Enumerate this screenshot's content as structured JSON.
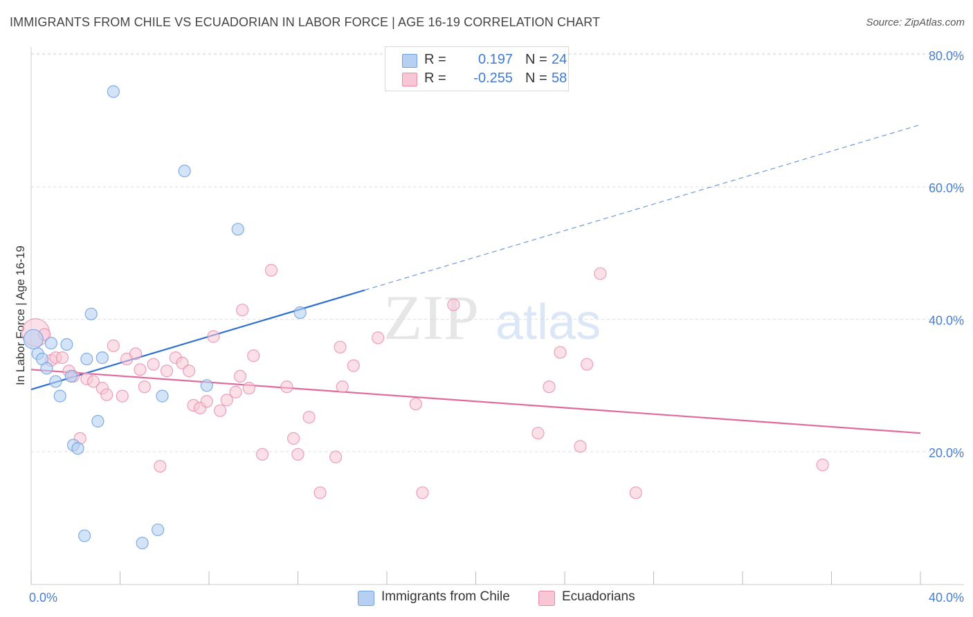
{
  "title": "IMMIGRANTS FROM CHILE VS ECUADORIAN IN LABOR FORCE | AGE 16-19 CORRELATION CHART",
  "source": "Source: ZipAtlas.com",
  "watermark": {
    "zip": "ZIP",
    "atlas": "atlas"
  },
  "legend": {
    "rows": [
      {
        "r_label": "R =",
        "r_value": "0.197",
        "n_label": "N =",
        "n_value": "24",
        "color": "#a9c8f0",
        "border": "#6fa0e0"
      },
      {
        "r_label": "R =",
        "r_value": "-0.255",
        "n_label": "N =",
        "n_value": "58",
        "color": "#f7bcd0",
        "border": "#e890ae"
      }
    ]
  },
  "bottom_legend": {
    "series_a": "Immigrants from Chile",
    "series_b": "Ecuadorians"
  },
  "x_axis": {
    "min_label": "0.0%",
    "max_label": "40.0%"
  },
  "y_axis": {
    "label": "In Labor Force | Age 16-19",
    "ticks": [
      "80.0%",
      "60.0%",
      "40.0%",
      "20.0%"
    ]
  },
  "chart_data": {
    "type": "scatter",
    "title": "IMMIGRANTS FROM CHILE VS ECUADORIAN IN LABOR FORCE | AGE 16-19 CORRELATION CHART",
    "xlabel": "",
    "ylabel": "In Labor Force | Age 16-19",
    "xlim": [
      0,
      40
    ],
    "ylim": [
      0,
      85
    ],
    "yticks": [
      20,
      40,
      60,
      80
    ],
    "grid": true,
    "colors": {
      "chile": "#6fa0e0",
      "chile_fill": "#b5d0f3",
      "ecuador": "#e98aab",
      "ecuador_fill": "#f9c6d6",
      "chile_line": "#2d6fd0",
      "ecuador_line": "#e0699a"
    },
    "series": [
      {
        "name": "Immigrants from Chile",
        "points": [
          [
            0.1,
            37.0
          ],
          [
            0.3,
            34.8
          ],
          [
            0.5,
            34.0
          ],
          [
            0.7,
            32.6
          ],
          [
            0.9,
            36.4
          ],
          [
            1.1,
            30.6
          ],
          [
            1.3,
            28.4
          ],
          [
            1.6,
            36.2
          ],
          [
            1.8,
            31.4
          ],
          [
            1.9,
            21.0
          ],
          [
            2.1,
            20.5
          ],
          [
            2.4,
            7.3
          ],
          [
            2.5,
            34.0
          ],
          [
            2.7,
            40.8
          ],
          [
            3.0,
            24.6
          ],
          [
            3.2,
            34.2
          ],
          [
            3.7,
            74.4
          ],
          [
            5.0,
            6.2
          ],
          [
            5.7,
            8.2
          ],
          [
            5.9,
            28.4
          ],
          [
            6.9,
            62.4
          ],
          [
            7.9,
            30.0
          ],
          [
            9.3,
            53.6
          ],
          [
            12.1,
            41.0
          ]
        ],
        "trend": {
          "x0": 0,
          "y0": 29.4,
          "x1": 15.0,
          "y1": 44.4,
          "x_dash_end": 40.0,
          "y_dash_end": 69.4
        }
      },
      {
        "name": "Ecuadorians",
        "points": [
          [
            0.2,
            38.0
          ],
          [
            0.6,
            37.7
          ],
          [
            0.9,
            33.8
          ],
          [
            1.1,
            34.2
          ],
          [
            1.4,
            34.2
          ],
          [
            1.7,
            32.2
          ],
          [
            1.9,
            31.4
          ],
          [
            2.2,
            22.0
          ],
          [
            2.5,
            31.0
          ],
          [
            2.8,
            30.6
          ],
          [
            3.2,
            29.6
          ],
          [
            3.4,
            28.6
          ],
          [
            3.7,
            36.0
          ],
          [
            4.1,
            28.4
          ],
          [
            4.3,
            34.0
          ],
          [
            4.7,
            34.8
          ],
          [
            4.9,
            32.4
          ],
          [
            5.1,
            29.8
          ],
          [
            5.5,
            33.2
          ],
          [
            5.8,
            17.8
          ],
          [
            6.1,
            32.2
          ],
          [
            6.5,
            34.2
          ],
          [
            6.8,
            33.4
          ],
          [
            7.1,
            32.2
          ],
          [
            7.3,
            27.0
          ],
          [
            7.6,
            26.6
          ],
          [
            7.9,
            27.6
          ],
          [
            8.2,
            37.4
          ],
          [
            8.5,
            26.2
          ],
          [
            8.8,
            27.8
          ],
          [
            9.2,
            29.0
          ],
          [
            9.4,
            31.4
          ],
          [
            9.5,
            41.4
          ],
          [
            9.8,
            29.6
          ],
          [
            10.0,
            34.5
          ],
          [
            10.4,
            19.6
          ],
          [
            10.8,
            47.4
          ],
          [
            11.5,
            29.8
          ],
          [
            11.8,
            22.0
          ],
          [
            12.0,
            19.6
          ],
          [
            12.5,
            25.2
          ],
          [
            13.0,
            13.8
          ],
          [
            13.7,
            19.2
          ],
          [
            13.9,
            35.8
          ],
          [
            14.0,
            29.8
          ],
          [
            14.5,
            33.0
          ],
          [
            15.6,
            37.2
          ],
          [
            17.3,
            27.2
          ],
          [
            17.6,
            13.8
          ],
          [
            19.0,
            42.2
          ],
          [
            22.8,
            22.8
          ],
          [
            23.3,
            29.8
          ],
          [
            23.8,
            35.0
          ],
          [
            24.7,
            20.8
          ],
          [
            25.0,
            33.2
          ],
          [
            25.6,
            46.9
          ],
          [
            27.2,
            13.8
          ],
          [
            35.6,
            18.0
          ]
        ],
        "trend": {
          "x0": 0,
          "y0": 32.4,
          "x1": 40.0,
          "y1": 22.8
        }
      }
    ]
  }
}
